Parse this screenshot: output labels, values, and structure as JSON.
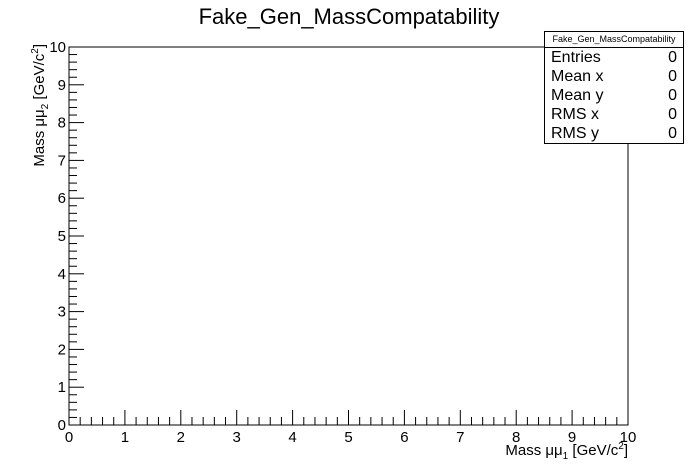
{
  "chart_data": {
    "type": "heatmap",
    "title": "Fake_Gen_MassCompatability",
    "xlabel": {
      "pre": "Mass μμ",
      "sub": "1",
      "mid": " [GeV/c",
      "sup": "2",
      "post": "]"
    },
    "ylabel": {
      "pre": "Mass μμ",
      "sub": "2",
      "mid": " [GeV/c",
      "sup": "2",
      "post": "]"
    },
    "xlim": [
      0,
      10
    ],
    "ylim": [
      0,
      10
    ],
    "x_ticks": [
      "0",
      "1",
      "2",
      "3",
      "4",
      "5",
      "6",
      "7",
      "8",
      "9",
      "10"
    ],
    "y_ticks": [
      "0",
      "1",
      "2",
      "3",
      "4",
      "5",
      "6",
      "7",
      "8",
      "9",
      "10"
    ],
    "grid": false,
    "values": [],
    "stats": {
      "title": "Fake_Gen_MassCompatability",
      "rows": [
        {
          "name": "Entries",
          "value": "0"
        },
        {
          "name": "Mean x",
          "value": "0"
        },
        {
          "name": "Mean y",
          "value": "0"
        },
        {
          "name": "RMS x",
          "value": "0"
        },
        {
          "name": "RMS y",
          "value": "0"
        }
      ]
    }
  }
}
